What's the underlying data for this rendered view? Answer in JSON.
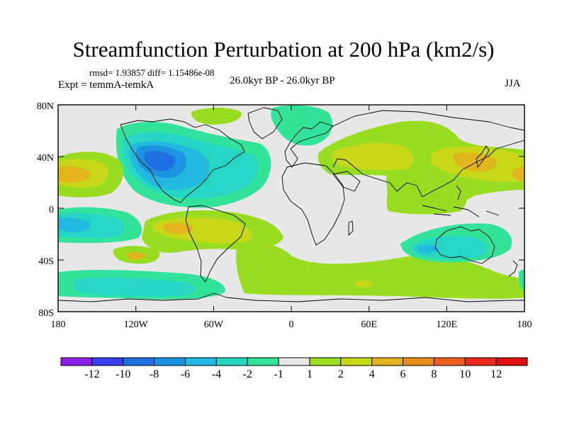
{
  "title": "Streamfunction Perturbation at 200 hPa (km2/s)",
  "stats_text": "rmsd= 1.93857 diff= 1.15486e-08",
  "experiment_text": "Expt = temmA-temkA",
  "period_text": "26.0kyr BP - 26.0kyr BP",
  "season_text": "JJA",
  "lat_labels": [
    "80N",
    "40N",
    "0",
    "40S",
    "80S"
  ],
  "lon_labels": [
    "180",
    "120W",
    "60W",
    "0",
    "60E",
    "120E",
    "180"
  ],
  "colorbar": {
    "labels": [
      "-12",
      "-10",
      "-8",
      "-6",
      "-4",
      "-2",
      "-1",
      "1",
      "2",
      "4",
      "6",
      "8",
      "10",
      "12"
    ],
    "colors": [
      "#8b1fe8",
      "#3a3ff0",
      "#1f6fe0",
      "#1b93e0",
      "#22b8e0",
      "#26d6c4",
      "#33e39a",
      "#e8e8e8",
      "#99dd22",
      "#c8d818",
      "#e0b41a",
      "#e88d1c",
      "#ee5f1e",
      "#ee2a1e",
      "#e01010"
    ]
  },
  "colors": {
    "land_background": "#e8e8e8",
    "coast": "#000000",
    "frame": "#000000"
  }
}
